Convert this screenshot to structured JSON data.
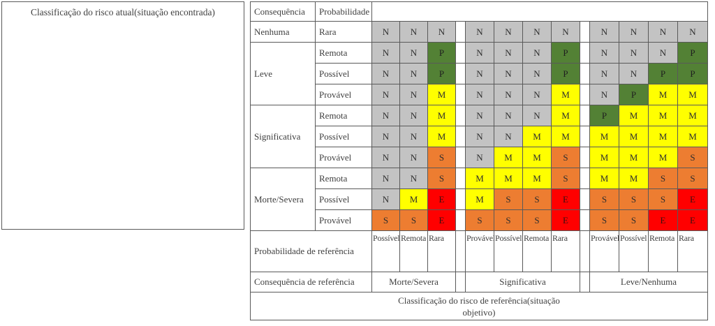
{
  "colors": {
    "N": "#C3C3C3",
    "P": "#538135",
    "M": "#FFFF00",
    "S": "#ED7D31",
    "E": "#FF0000"
  },
  "left_panel": {
    "title": "Classificação do risco atual(situação encontrada)"
  },
  "header": {
    "consequence": "Consequência",
    "probability": "Probabilidade"
  },
  "consequence_groups": [
    {
      "label": "Nenhuma",
      "rows": [
        "Rara"
      ]
    },
    {
      "label": "Leve",
      "rows": [
        "Remota",
        "Possível",
        "Provável"
      ]
    },
    {
      "label": "Significativa",
      "rows": [
        "Remota",
        "Possível",
        "Provável"
      ]
    },
    {
      "label": "Morte/Severa",
      "rows": [
        "Remota",
        "Possível",
        "Provável"
      ]
    }
  ],
  "matrix": {
    "groups": [
      {
        "ref_consequence": "Morte/Severa",
        "ref_probabilities": [
          "Possível",
          "Remota",
          "Rara"
        ],
        "rows": [
          [
            "N",
            "N",
            "N"
          ],
          [
            "N",
            "N",
            "P"
          ],
          [
            "N",
            "N",
            "P"
          ],
          [
            "N",
            "N",
            "M"
          ],
          [
            "N",
            "N",
            "M"
          ],
          [
            "N",
            "N",
            "M"
          ],
          [
            "N",
            "N",
            "S"
          ],
          [
            "N",
            "N",
            "S"
          ],
          [
            "N",
            "M",
            "E"
          ],
          [
            "S",
            "S",
            "E"
          ]
        ]
      },
      {
        "ref_consequence": "Significativa",
        "ref_probabilities": [
          "Provável",
          "Possível",
          "Remota",
          "Rara"
        ],
        "rows": [
          [
            "N",
            "N",
            "N",
            "N"
          ],
          [
            "N",
            "N",
            "N",
            "P"
          ],
          [
            "N",
            "N",
            "N",
            "P"
          ],
          [
            "N",
            "N",
            "N",
            "M"
          ],
          [
            "N",
            "N",
            "N",
            "M"
          ],
          [
            "N",
            "N",
            "M",
            "M"
          ],
          [
            "N",
            "M",
            "M",
            "S"
          ],
          [
            "M",
            "M",
            "M",
            "S"
          ],
          [
            "M",
            "S",
            "S",
            "E"
          ],
          [
            "S",
            "S",
            "S",
            "E"
          ]
        ]
      },
      {
        "ref_consequence": "Leve/Nenhuma",
        "ref_probabilities": [
          "Provável",
          "Possível",
          "Remota",
          "Rara"
        ],
        "rows": [
          [
            "N",
            "N",
            "N",
            "N"
          ],
          [
            "N",
            "N",
            "N",
            "P"
          ],
          [
            "N",
            "N",
            "P",
            "P"
          ],
          [
            "N",
            "P",
            "M",
            "M"
          ],
          [
            "P",
            "M",
            "M",
            "M"
          ],
          [
            "M",
            "M",
            "M",
            "M"
          ],
          [
            "M",
            "M",
            "M",
            "S"
          ],
          [
            "M",
            "M",
            "S",
            "S"
          ],
          [
            "S",
            "S",
            "S",
            "E"
          ],
          [
            "S",
            "S",
            "E",
            "E"
          ]
        ]
      }
    ]
  },
  "footer": {
    "probability_ref_label": "Probabilidade de referência",
    "consequence_ref_label": "Consequência de referência",
    "classification_ref_line1": "Classificação do risco de referência(situação",
    "classification_ref_line2": "objetivo)"
  }
}
